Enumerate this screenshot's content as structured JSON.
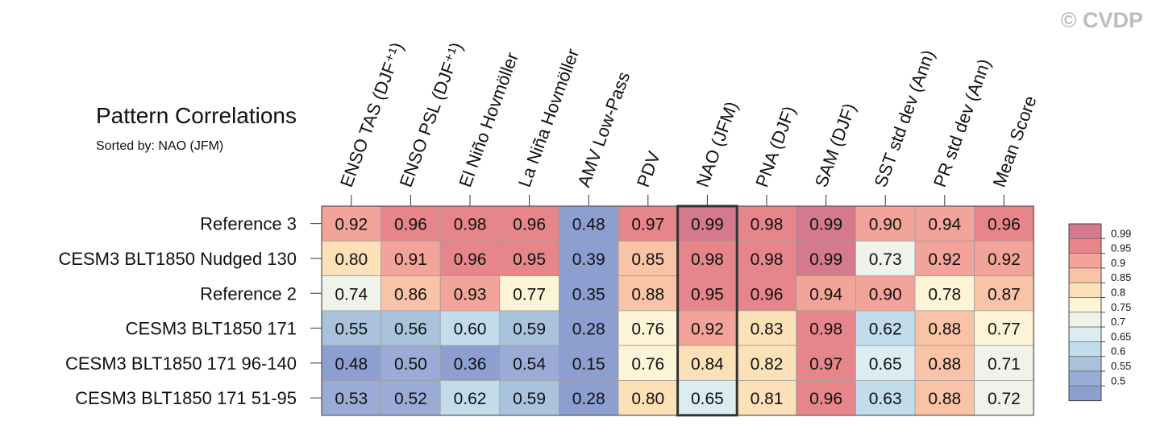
{
  "watermark": "© CVDP",
  "chart_data": {
    "type": "heatmap",
    "title": "Pattern Correlations",
    "subtitle": "Sorted by: NAO (JFM)",
    "columns": [
      "ENSO TAS (DJF⁺¹)",
      "ENSO PSL (DJF⁺¹)",
      "El Niño Hovmöller",
      "La Niña Hovmöller",
      "AMV Low-Pass",
      "PDV",
      "NAO (JFM)",
      "PNA (DJF)",
      "SAM (DJF)",
      "SST std dev (Ann)",
      "PR std dev (Ann)",
      "Mean Score"
    ],
    "rows": [
      "Reference 3",
      "CESM3 BLT1850 Nudged 130",
      "Reference 2",
      "CESM3 BLT1850 171",
      "CESM3 BLT1850 171 96-140",
      "CESM3 BLT1850 171 51-95"
    ],
    "values": [
      [
        "0.92",
        "0.96",
        "0.98",
        "0.96",
        "0.48",
        "0.97",
        "0.99",
        "0.98",
        "0.99",
        "0.90",
        "0.94",
        "0.96"
      ],
      [
        "0.80",
        "0.91",
        "0.96",
        "0.95",
        "0.39",
        "0.85",
        "0.98",
        "0.98",
        "0.99",
        "0.73",
        "0.92",
        "0.92"
      ],
      [
        "0.74",
        "0.86",
        "0.93",
        "0.77",
        "0.35",
        "0.88",
        "0.95",
        "0.96",
        "0.94",
        "0.90",
        "0.78",
        "0.87"
      ],
      [
        "0.55",
        "0.56",
        "0.60",
        "0.59",
        "0.28",
        "0.76",
        "0.92",
        "0.83",
        "0.98",
        "0.62",
        "0.88",
        "0.77"
      ],
      [
        "0.48",
        "0.50",
        "0.36",
        "0.54",
        "0.15",
        "0.76",
        "0.84",
        "0.82",
        "0.97",
        "0.65",
        "0.88",
        "0.71"
      ],
      [
        "0.53",
        "0.52",
        "0.62",
        "0.59",
        "0.28",
        "0.80",
        "0.65",
        "0.81",
        "0.96",
        "0.63",
        "0.88",
        "0.72"
      ]
    ],
    "highlighted_column": "NAO (JFM)",
    "colorbar": {
      "levels": [
        "0.99",
        "0.95",
        "0.9",
        "0.85",
        "0.8",
        "0.75",
        "0.7",
        "0.65",
        "0.6",
        "0.55",
        "0.5"
      ],
      "colors": [
        "#d47a8c",
        "#e6858a",
        "#f2a49a",
        "#f8c3a6",
        "#fce1b8",
        "#fdf3d6",
        "#eff3ea",
        "#dbecf3",
        "#c2dcec",
        "#a9c3dd",
        "#9aabd6",
        "#8d9fd1"
      ]
    },
    "legend_position": "right"
  }
}
